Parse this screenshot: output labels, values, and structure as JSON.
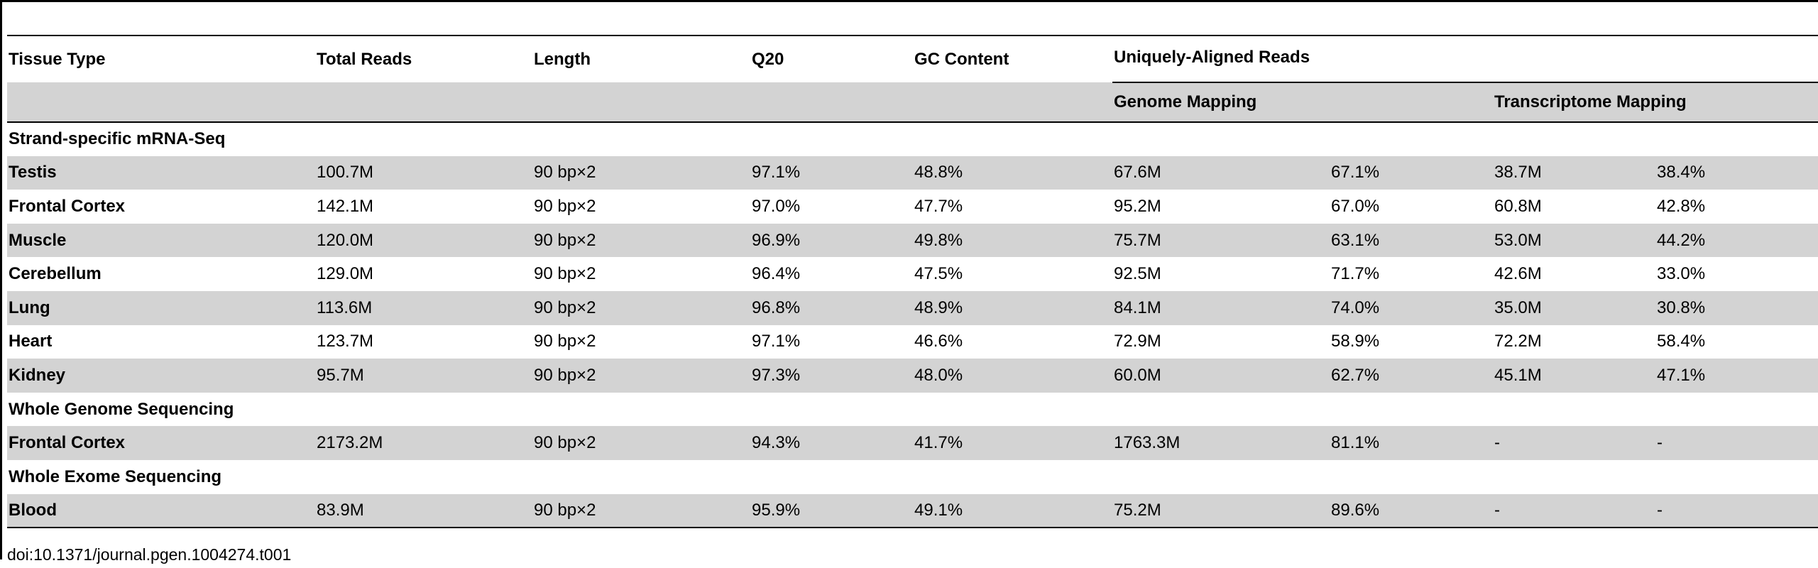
{
  "table": {
    "headers": {
      "tissue_type": "Tissue Type",
      "total_reads": "Total Reads",
      "length": "Length",
      "q20": "Q20",
      "gc_content": "GC Content",
      "uniquely_aligned_reads": "Uniquely-Aligned Reads",
      "genome_mapping": "Genome Mapping",
      "transcriptome_mapping": "Transcriptome Mapping"
    },
    "rows": [
      {
        "section": "Strand-specific mRNA-Seq"
      },
      {
        "cells": [
          "Testis",
          "100.7M",
          "90 bp×2",
          "97.1%",
          "48.8%",
          "67.6M",
          "67.1%",
          "38.7M",
          "38.4%"
        ]
      },
      {
        "cells": [
          "Frontal Cortex",
          "142.1M",
          "90 bp×2",
          "97.0%",
          "47.7%",
          "95.2M",
          "67.0%",
          "60.8M",
          "42.8%"
        ]
      },
      {
        "cells": [
          "Muscle",
          "120.0M",
          "90 bp×2",
          "96.9%",
          "49.8%",
          "75.7M",
          "63.1%",
          "53.0M",
          "44.2%"
        ]
      },
      {
        "cells": [
          "Cerebellum",
          "129.0M",
          "90 bp×2",
          "96.4%",
          "47.5%",
          "92.5M",
          "71.7%",
          "42.6M",
          "33.0%"
        ]
      },
      {
        "cells": [
          "Lung",
          "113.6M",
          "90 bp×2",
          "96.8%",
          "48.9%",
          "84.1M",
          "74.0%",
          "35.0M",
          "30.8%"
        ]
      },
      {
        "cells": [
          "Heart",
          "123.7M",
          "90 bp×2",
          "97.1%",
          "46.6%",
          "72.9M",
          "58.9%",
          "72.2M",
          "58.4%"
        ]
      },
      {
        "cells": [
          "Kidney",
          "95.7M",
          "90 bp×2",
          "97.3%",
          "48.0%",
          "60.0M",
          "62.7%",
          "45.1M",
          "47.1%"
        ]
      },
      {
        "section": "Whole Genome Sequencing"
      },
      {
        "cells": [
          "Frontal Cortex",
          "2173.2M",
          "90 bp×2",
          "94.3%",
          "41.7%",
          "1763.3M",
          "81.1%",
          "-",
          "-"
        ]
      },
      {
        "section": "Whole Exome Sequencing"
      },
      {
        "cells": [
          "Blood",
          "83.9M",
          "90 bp×2",
          "95.9%",
          "49.1%",
          "75.2M",
          "89.6%",
          "-",
          "-"
        ]
      }
    ]
  },
  "footer": {
    "doi": "doi:10.1371/journal.pgen.1004274.t001"
  }
}
